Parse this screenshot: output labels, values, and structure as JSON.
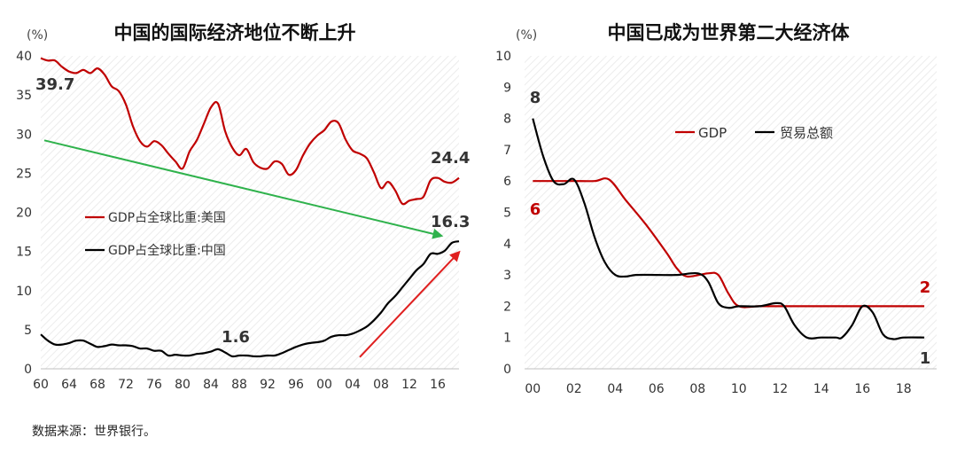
{
  "source_note": "数据来源：世界银行。",
  "chart_data": [
    {
      "type": "line",
      "title": "中国的国际经济地位不断上升",
      "unit_label": "(%)",
      "ylim": [
        0,
        40
      ],
      "y_ticks": [
        "0",
        "5",
        "10",
        "15",
        "20",
        "25",
        "30",
        "35",
        "40"
      ],
      "x_ticks": [
        "60",
        "64",
        "68",
        "72",
        "76",
        "80",
        "84",
        "88",
        "92",
        "96",
        "00",
        "04",
        "08",
        "12",
        "16"
      ],
      "xlim": [
        1960,
        2019
      ],
      "grid": "hatched background",
      "colors": {
        "usa": "#c00000",
        "china": "#000000",
        "trend_down": "#2fb24c",
        "trend_up": "#e02020"
      },
      "series": [
        {
          "name": "GDP占全球比重:美国",
          "color": "#c00000",
          "x": [
            1960,
            1961,
            1962,
            1963,
            1964,
            1965,
            1966,
            1967,
            1968,
            1969,
            1970,
            1971,
            1972,
            1973,
            1974,
            1975,
            1976,
            1977,
            1978,
            1979,
            1980,
            1981,
            1982,
            1983,
            1984,
            1985,
            1986,
            1987,
            1988,
            1989,
            1990,
            1991,
            1992,
            1993,
            1994,
            1995,
            1996,
            1997,
            1998,
            1999,
            2000,
            2001,
            2002,
            2003,
            2004,
            2005,
            2006,
            2007,
            2008,
            2009,
            2010,
            2011,
            2012,
            2013,
            2014,
            2015,
            2016,
            2017,
            2018,
            2019
          ],
          "values": [
            39.7,
            39.4,
            39.4,
            38.6,
            38.0,
            37.8,
            38.2,
            37.8,
            38.4,
            37.6,
            36.1,
            35.5,
            33.8,
            31.0,
            29.1,
            28.4,
            29.1,
            28.6,
            27.5,
            26.5,
            25.6,
            27.8,
            29.2,
            31.3,
            33.4,
            33.9,
            30.4,
            28.3,
            27.3,
            28.1,
            26.4,
            25.7,
            25.6,
            26.5,
            26.2,
            24.8,
            25.4,
            27.3,
            28.8,
            29.8,
            30.5,
            31.6,
            31.4,
            29.3,
            27.9,
            27.5,
            26.9,
            25.1,
            23.1,
            23.9,
            22.8,
            21.1,
            21.5,
            21.7,
            22.0,
            24.1,
            24.4,
            23.9,
            23.8,
            24.4
          ]
        },
        {
          "name": "GDP占全球比重:中国",
          "color": "#000000",
          "x": [
            1960,
            1961,
            1962,
            1963,
            1964,
            1965,
            1966,
            1967,
            1968,
            1969,
            1970,
            1971,
            1972,
            1973,
            1974,
            1975,
            1976,
            1977,
            1978,
            1979,
            1980,
            1981,
            1982,
            1983,
            1984,
            1985,
            1986,
            1987,
            1988,
            1989,
            1990,
            1991,
            1992,
            1993,
            1994,
            1995,
            1996,
            1997,
            1998,
            1999,
            2000,
            2001,
            2002,
            2003,
            2004,
            2005,
            2006,
            2007,
            2008,
            2009,
            2010,
            2011,
            2012,
            2013,
            2014,
            2015,
            2016,
            2017,
            2018,
            2019
          ],
          "values": [
            4.4,
            3.6,
            3.1,
            3.1,
            3.3,
            3.6,
            3.6,
            3.2,
            2.8,
            2.9,
            3.1,
            3.0,
            3.0,
            2.9,
            2.6,
            2.6,
            2.3,
            2.3,
            1.7,
            1.8,
            1.7,
            1.7,
            1.9,
            2.0,
            2.2,
            2.5,
            2.1,
            1.6,
            1.7,
            1.7,
            1.6,
            1.6,
            1.7,
            1.7,
            2.0,
            2.4,
            2.8,
            3.1,
            3.3,
            3.4,
            3.6,
            4.1,
            4.3,
            4.3,
            4.5,
            4.9,
            5.4,
            6.2,
            7.2,
            8.4,
            9.3,
            10.4,
            11.5,
            12.6,
            13.4,
            14.7,
            14.7,
            15.1,
            16.1,
            16.3
          ]
        }
      ],
      "annotations": [
        {
          "text": "39.7",
          "x": 1960,
          "y": 39.7
        },
        {
          "text": "24.4",
          "x": 2019,
          "y": 24.4
        },
        {
          "text": "16.3",
          "x": 2019,
          "y": 16.3
        },
        {
          "text": "1.6",
          "x": 1987,
          "y": 1.6
        }
      ],
      "arrows": [
        {
          "kind": "trend_down",
          "from": [
            1960.5,
            29.2
          ],
          "to": [
            2016.5,
            17.0
          ]
        },
        {
          "kind": "trend_up",
          "from": [
            2005,
            1.5
          ],
          "to": [
            2019,
            14.9
          ]
        }
      ],
      "legend": [
        {
          "label": "GDP占全球比重:美国",
          "color": "#c00000"
        },
        {
          "label": "GDP占全球比重:中国",
          "color": "#000000"
        }
      ],
      "legend_position": "center-left"
    },
    {
      "type": "line",
      "title": "中国已成为世界第二大经济体",
      "unit_label": "(%)",
      "ylim": [
        0,
        10
      ],
      "y_ticks": [
        "0",
        "1",
        "2",
        "3",
        "4",
        "5",
        "6",
        "7",
        "8",
        "9",
        "10"
      ],
      "x_ticks": [
        "00",
        "02",
        "04",
        "06",
        "08",
        "10",
        "12",
        "14",
        "16",
        "18"
      ],
      "xlim": [
        1999.6,
        2019.6
      ],
      "grid": "hatched background",
      "series": [
        {
          "name": "GDP",
          "color": "#c00000",
          "x": [
            2000,
            2001,
            2002,
            2003,
            2003.7,
            2004.5,
            2005.5,
            2006.5,
            2007,
            2007.5,
            2008.5,
            2009,
            2009.5,
            2010,
            2011,
            2012,
            2013,
            2014,
            2015,
            2016,
            2017,
            2018,
            2019
          ],
          "values": [
            6,
            6,
            6,
            6,
            6.05,
            5.4,
            4.6,
            3.7,
            3.2,
            2.95,
            3.05,
            3.0,
            2.4,
            2.0,
            2,
            2,
            2,
            2,
            2,
            2,
            2,
            2,
            2
          ]
        },
        {
          "name": "贸易总额",
          "color": "#000000",
          "x": [
            2000,
            2000.5,
            2001,
            2001.5,
            2002,
            2002.5,
            2003,
            2003.5,
            2004,
            2004.5,
            2005,
            2006,
            2007,
            2008,
            2008.5,
            2009,
            2009.5,
            2010,
            2011,
            2011.8,
            2012.2,
            2012.7,
            2013.3,
            2014,
            2014.7,
            2015,
            2015.5,
            2016,
            2016.5,
            2017,
            2017.5,
            2018,
            2019
          ],
          "values": [
            8,
            6.8,
            6.0,
            5.9,
            6.05,
            5.3,
            4.2,
            3.4,
            3.0,
            2.95,
            3.0,
            3.0,
            3.0,
            3.05,
            2.8,
            2.1,
            1.95,
            2.0,
            2.0,
            2.1,
            2.0,
            1.4,
            1.0,
            1.0,
            1.0,
            1.0,
            1.4,
            2.0,
            1.8,
            1.1,
            0.95,
            1.0,
            1.0
          ]
        }
      ],
      "annotations": [
        {
          "text": "8",
          "x": 2000,
          "y": 8,
          "color": "#333333"
        },
        {
          "text": "6",
          "x": 2000,
          "y": 6,
          "color": "#c00000"
        },
        {
          "text": "2",
          "x": 2019,
          "y": 2,
          "color": "#c00000"
        },
        {
          "text": "1",
          "x": 2019,
          "y": 1,
          "color": "#333333"
        }
      ],
      "legend": [
        {
          "label": "GDP",
          "color": "#c00000"
        },
        {
          "label": "贸易总额",
          "color": "#000000"
        }
      ],
      "legend_position": "top-center"
    }
  ]
}
